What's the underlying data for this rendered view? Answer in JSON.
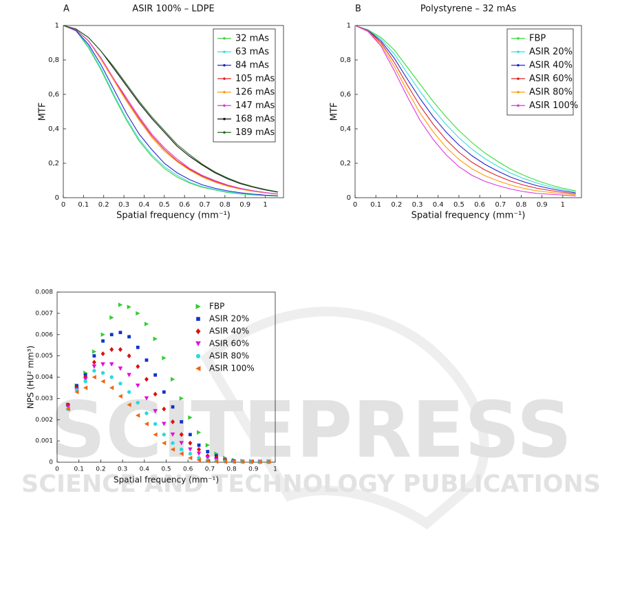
{
  "watermark": {
    "title": "SCITEPRESS",
    "subtitle": "SCIENCE AND TECHNOLOGY PUBLICATIONS"
  },
  "chart_data": [
    {
      "type": "line",
      "panel_label": "A",
      "title": "ASIR 100% – LDPE",
      "x_label": "Spatial frequency (mm⁻¹)",
      "y_label": "MTF",
      "xlim": [
        0,
        1.09
      ],
      "ylim": [
        0,
        1
      ],
      "xticks": [
        0,
        0.1,
        0.2,
        0.3,
        0.4,
        0.5,
        0.6,
        0.7,
        0.8,
        0.9,
        1
      ],
      "yticks": [
        0,
        {
          "value": 0.2,
          "label": "0,2"
        },
        {
          "value": 0.4,
          "label": "0,4"
        },
        {
          "value": 0.6,
          "label": "0,6"
        },
        {
          "value": 0.8,
          "label": "0,8"
        },
        1
      ],
      "legend": "upper right",
      "grid": false,
      "x": [
        0,
        0.0625,
        0.125,
        0.1875,
        0.25,
        0.3125,
        0.375,
        0.4375,
        0.5,
        0.5625,
        0.625,
        0.6875,
        0.75,
        0.8125,
        0.875,
        0.9375,
        1,
        1.0625
      ],
      "series": [
        {
          "name": "32 mAs",
          "color": "#44cc44",
          "values": [
            1,
            0.97,
            0.87,
            0.74,
            0.59,
            0.45,
            0.33,
            0.24,
            0.17,
            0.12,
            0.085,
            0.06,
            0.045,
            0.03,
            0.022,
            0.016,
            0.012,
            0.009
          ]
        },
        {
          "name": "63 mAs",
          "color": "#33dddd",
          "values": [
            1,
            0.97,
            0.88,
            0.75,
            0.6,
            0.46,
            0.34,
            0.25,
            0.18,
            0.13,
            0.09,
            0.065,
            0.048,
            0.034,
            0.025,
            0.018,
            0.013,
            0.01
          ]
        },
        {
          "name": "84 mAs",
          "color": "#2222cc",
          "values": [
            1,
            0.97,
            0.89,
            0.77,
            0.63,
            0.49,
            0.37,
            0.28,
            0.2,
            0.145,
            0.105,
            0.075,
            0.055,
            0.04,
            0.029,
            0.021,
            0.015,
            0.011
          ]
        },
        {
          "name": "105 mAs",
          "color": "#dd2222",
          "values": [
            1,
            0.975,
            0.91,
            0.81,
            0.69,
            0.57,
            0.46,
            0.36,
            0.28,
            0.215,
            0.165,
            0.125,
            0.095,
            0.07,
            0.052,
            0.039,
            0.029,
            0.021
          ]
        },
        {
          "name": "126 mAs",
          "color": "#ff9900",
          "values": [
            1,
            0.975,
            0.91,
            0.8,
            0.68,
            0.56,
            0.45,
            0.35,
            0.27,
            0.21,
            0.16,
            0.12,
            0.09,
            0.067,
            0.05,
            0.037,
            0.028,
            0.02
          ]
        },
        {
          "name": "147 mAs",
          "color": "#dd33dd",
          "values": [
            1,
            0.975,
            0.91,
            0.81,
            0.69,
            0.58,
            0.47,
            0.37,
            0.29,
            0.225,
            0.17,
            0.13,
            0.1,
            0.074,
            0.055,
            0.041,
            0.03,
            0.022
          ]
        },
        {
          "name": "168 mAs",
          "color": "#111111",
          "values": [
            1,
            0.98,
            0.93,
            0.85,
            0.75,
            0.65,
            0.55,
            0.46,
            0.38,
            0.3,
            0.24,
            0.19,
            0.145,
            0.11,
            0.082,
            0.062,
            0.045,
            0.032
          ]
        },
        {
          "name": "189 mAs",
          "color": "#226622",
          "values": [
            1,
            0.98,
            0.93,
            0.85,
            0.76,
            0.66,
            0.56,
            0.47,
            0.39,
            0.31,
            0.25,
            0.195,
            0.15,
            0.115,
            0.086,
            0.065,
            0.048,
            0.034
          ]
        }
      ]
    },
    {
      "type": "line",
      "panel_label": "B",
      "title": "Polystyrene – 32 mAs",
      "x_label": "Spatial frequency (mm⁻¹)",
      "y_label": "MTF",
      "xlim": [
        0,
        1.09
      ],
      "ylim": [
        0,
        1
      ],
      "xticks": [
        0,
        0.1,
        0.2,
        0.3,
        0.4,
        0.5,
        0.6,
        0.7,
        0.8,
        0.9,
        1
      ],
      "yticks": [
        0,
        {
          "value": 0.2,
          "label": "0,2"
        },
        {
          "value": 0.4,
          "label": "0,4"
        },
        {
          "value": 0.6,
          "label": "0,6"
        },
        {
          "value": 0.8,
          "label": "0,8"
        },
        1
      ],
      "legend": "upper right",
      "grid": false,
      "x": [
        0,
        0.0625,
        0.125,
        0.1875,
        0.25,
        0.3125,
        0.375,
        0.4375,
        0.5,
        0.5625,
        0.625,
        0.6875,
        0.75,
        0.8125,
        0.875,
        0.9375,
        1,
        1.0625
      ],
      "series": [
        {
          "name": "FBP",
          "color": "#33dd33",
          "values": [
            1,
            0.975,
            0.93,
            0.86,
            0.76,
            0.66,
            0.56,
            0.47,
            0.39,
            0.32,
            0.26,
            0.21,
            0.165,
            0.13,
            0.1,
            0.075,
            0.055,
            0.04
          ]
        },
        {
          "name": "ASIR 20%",
          "color": "#33dddd",
          "values": [
            1,
            0.973,
            0.92,
            0.836,
            0.726,
            0.618,
            0.516,
            0.426,
            0.348,
            0.282,
            0.227,
            0.182,
            0.142,
            0.111,
            0.085,
            0.064,
            0.047,
            0.034
          ]
        },
        {
          "name": "ASIR 40%",
          "color": "#2222cc",
          "values": [
            1,
            0.971,
            0.91,
            0.812,
            0.692,
            0.576,
            0.472,
            0.382,
            0.306,
            0.244,
            0.194,
            0.154,
            0.119,
            0.092,
            0.07,
            0.053,
            0.039,
            0.028
          ]
        },
        {
          "name": "ASIR 60%",
          "color": "#dd2222",
          "values": [
            1,
            0.969,
            0.9,
            0.788,
            0.658,
            0.534,
            0.428,
            0.338,
            0.264,
            0.206,
            0.161,
            0.126,
            0.096,
            0.073,
            0.055,
            0.042,
            0.031,
            0.022
          ]
        },
        {
          "name": "ASIR 80%",
          "color": "#ff9900",
          "values": [
            1,
            0.967,
            0.89,
            0.764,
            0.624,
            0.492,
            0.384,
            0.294,
            0.222,
            0.168,
            0.128,
            0.098,
            0.073,
            0.054,
            0.04,
            0.031,
            0.023,
            0.016
          ]
        },
        {
          "name": "ASIR 100%",
          "color": "#dd33dd",
          "values": [
            1,
            0.965,
            0.88,
            0.74,
            0.59,
            0.45,
            0.34,
            0.25,
            0.18,
            0.13,
            0.095,
            0.07,
            0.05,
            0.035,
            0.025,
            0.02,
            0.015,
            0.01
          ]
        }
      ]
    },
    {
      "type": "scatter",
      "x_label": "Spatial frequency (mm⁻¹)",
      "y_label": "NPS (HU² mm³)",
      "xlim": [
        0,
        1
      ],
      "ylim": [
        0,
        0.008
      ],
      "xticks": [
        0,
        0.1,
        0.2,
        0.3,
        0.4,
        0.5,
        0.6,
        0.7,
        0.8,
        0.9,
        1
      ],
      "yticks": [
        0,
        0.001,
        0.002,
        0.003,
        0.004,
        0.005,
        0.006,
        0.007,
        0.008
      ],
      "legend": "upper right",
      "grid": false,
      "x": [
        0.05,
        0.09,
        0.13,
        0.17,
        0.21,
        0.25,
        0.29,
        0.33,
        0.37,
        0.41,
        0.45,
        0.49,
        0.53,
        0.57,
        0.61,
        0.65,
        0.69,
        0.73,
        0.77,
        0.81,
        0.85,
        0.89,
        0.93,
        0.97
      ],
      "series": [
        {
          "name": "FBP",
          "color": "#33cc33",
          "marker": "triangle-right",
          "values": [
            0.0027,
            0.0036,
            0.0042,
            0.0052,
            0.006,
            0.0068,
            0.0074,
            0.0073,
            0.007,
            0.0065,
            0.0058,
            0.0049,
            0.0039,
            0.003,
            0.0021,
            0.0014,
            0.0008,
            0.0004,
            0.0002,
            0.0001,
            5e-05,
            3e-05,
            2e-05,
            2e-05
          ]
        },
        {
          "name": "ASIR 20%",
          "color": "#1133cc",
          "marker": "square",
          "values": [
            0.0027,
            0.0036,
            0.0041,
            0.005,
            0.0057,
            0.006,
            0.0061,
            0.0059,
            0.0054,
            0.0048,
            0.0041,
            0.0033,
            0.0026,
            0.0019,
            0.0013,
            0.0008,
            0.0005,
            0.0003,
            0.0001,
            6e-05,
            3e-05,
            2e-05,
            2e-05,
            2e-05
          ]
        },
        {
          "name": "ASIR 40%",
          "color": "#dd1111",
          "marker": "diamond",
          "values": [
            0.0027,
            0.0035,
            0.004,
            0.0047,
            0.0051,
            0.0053,
            0.0053,
            0.005,
            0.0045,
            0.0039,
            0.0032,
            0.0025,
            0.0019,
            0.0013,
            0.0009,
            0.0006,
            0.0003,
            0.0002,
            0.0001,
            5e-05,
            3e-05,
            2e-05,
            2e-05,
            2e-05
          ]
        },
        {
          "name": "ASIR 60%",
          "color": "#dd11dd",
          "marker": "triangle-down",
          "values": [
            0.0026,
            0.0034,
            0.0039,
            0.0045,
            0.0046,
            0.0046,
            0.0044,
            0.0041,
            0.0036,
            0.003,
            0.0024,
            0.0018,
            0.0013,
            0.0009,
            0.0006,
            0.0004,
            0.0002,
            0.0001,
            6e-05,
            3e-05,
            2e-05,
            2e-05,
            2e-05,
            2e-05
          ]
        },
        {
          "name": "ASIR 80%",
          "color": "#22dddd",
          "marker": "circle",
          "values": [
            0.0025,
            0.0034,
            0.0038,
            0.0043,
            0.0042,
            0.004,
            0.0037,
            0.0033,
            0.0028,
            0.0023,
            0.0018,
            0.0013,
            0.0009,
            0.0006,
            0.0004,
            0.0002,
            0.0001,
            6e-05,
            3e-05,
            2e-05,
            2e-05,
            2e-05,
            2e-05,
            2e-05
          ]
        },
        {
          "name": "ASIR 100%",
          "color": "#ee6611",
          "marker": "triangle-left",
          "values": [
            0.0025,
            0.0033,
            0.0035,
            0.004,
            0.0038,
            0.0035,
            0.0031,
            0.0027,
            0.0022,
            0.0018,
            0.0013,
            0.0009,
            0.0006,
            0.0004,
            0.0002,
            0.0001,
            6e-05,
            3e-05,
            2e-05,
            2e-05,
            2e-05,
            2e-05,
            2e-05,
            2e-05
          ]
        }
      ]
    }
  ]
}
